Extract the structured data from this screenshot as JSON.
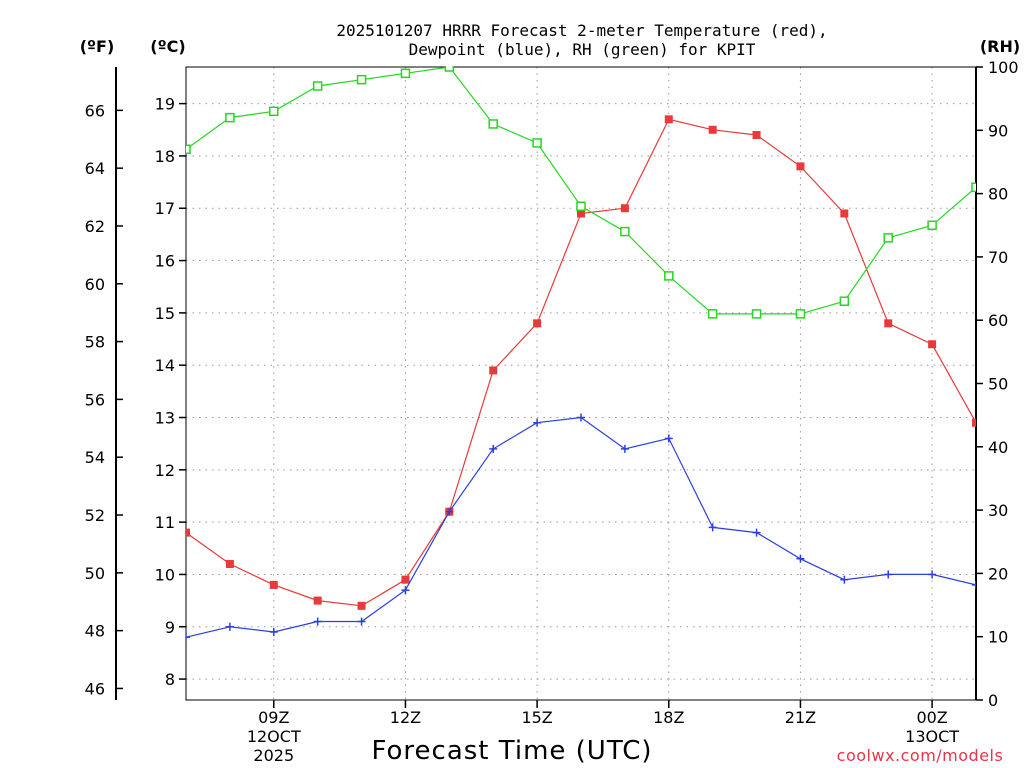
{
  "chart_data": {
    "type": "line",
    "title_line1": "2025101207 HRRR Forecast 2-meter Temperature (red),",
    "title_line2": "Dewpoint (blue), RH (green) for KPIT",
    "xlabel": "Forecast Time (UTC)",
    "watermark": "coolwx.com/models",
    "left_outer_axis": {
      "unit_label": "(ºF)",
      "range": [
        45.6,
        67.5
      ],
      "ticks": [
        46,
        48,
        50,
        52,
        54,
        56,
        58,
        60,
        62,
        64,
        66
      ]
    },
    "left_inner_axis": {
      "unit_label": "(ºC)",
      "range": [
        7.6,
        19.7
      ],
      "ticks": [
        8,
        9,
        10,
        11,
        12,
        13,
        14,
        15,
        16,
        17,
        18,
        19
      ]
    },
    "right_axis": {
      "unit_label": "(RH)",
      "range": [
        0,
        100
      ],
      "ticks": [
        0,
        10,
        20,
        30,
        40,
        50,
        60,
        70,
        80,
        90,
        100
      ]
    },
    "x_hours": [
      7,
      8,
      9,
      10,
      11,
      12,
      13,
      14,
      15,
      16,
      17,
      18,
      19,
      20,
      21,
      22,
      23,
      24,
      25
    ],
    "x_ticks": [
      {
        "hour": 9,
        "line1": "09Z",
        "line2": "12OCT",
        "line3": "2025"
      },
      {
        "hour": 12,
        "line1": "12Z",
        "line2": "",
        "line3": ""
      },
      {
        "hour": 15,
        "line1": "15Z",
        "line2": "",
        "line3": ""
      },
      {
        "hour": 18,
        "line1": "18Z",
        "line2": "",
        "line3": ""
      },
      {
        "hour": 21,
        "line1": "21Z",
        "line2": "",
        "line3": ""
      },
      {
        "hour": 24,
        "line1": "00Z",
        "line2": "13OCT",
        "line3": ""
      }
    ],
    "series": [
      {
        "name": "Temperature (°C)",
        "color": "#e83a3a",
        "axis": "celsius",
        "marker": "filled-square",
        "values": [
          10.8,
          10.2,
          9.8,
          9.5,
          9.4,
          9.9,
          11.2,
          13.9,
          14.8,
          16.9,
          17.0,
          18.7,
          18.5,
          18.4,
          17.8,
          16.9,
          14.8,
          14.4,
          12.9
        ]
      },
      {
        "name": "Dewpoint (°C)",
        "color": "#2b3fe0",
        "axis": "celsius",
        "marker": "plus",
        "values": [
          8.8,
          9.0,
          8.9,
          9.1,
          9.1,
          9.7,
          11.2,
          12.4,
          12.9,
          13.0,
          12.4,
          12.6,
          10.9,
          10.8,
          10.3,
          9.9,
          10.0,
          10.0,
          9.8
        ]
      },
      {
        "name": "RH (%)",
        "color": "#22d822",
        "axis": "rh",
        "marker": "open-square",
        "values": [
          87,
          92,
          93,
          97,
          98,
          99,
          100,
          91,
          88,
          78,
          74,
          67,
          61,
          61,
          61,
          63,
          73,
          75,
          81
        ]
      }
    ]
  }
}
